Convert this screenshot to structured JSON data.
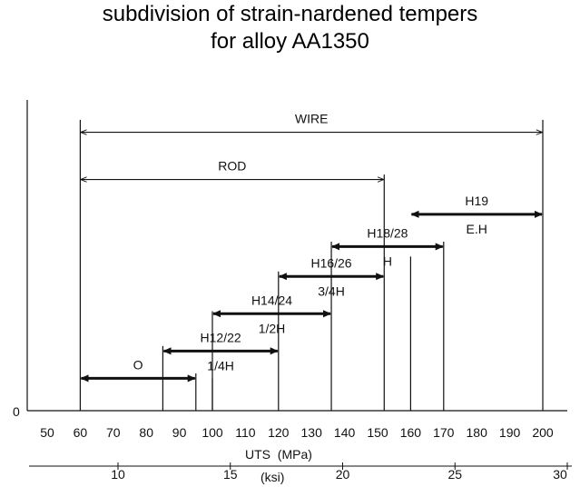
{
  "chart_data": {
    "type": "range-bar",
    "title_lines": [
      "subdivision of strain-nardened tempers",
      "for alloy AA1350"
    ],
    "xlabel_mpa": "UTS  (MPa)",
    "xlabel_ksi": "(ksi)",
    "y_origin_label": "0",
    "mpa_axis": {
      "range": [
        45,
        205
      ],
      "ticks": [
        50,
        60,
        70,
        80,
        90,
        100,
        110,
        120,
        130,
        140,
        150,
        160,
        170,
        180,
        190,
        200
      ]
    },
    "ksi_axis": {
      "range": [
        6.5,
        30
      ],
      "ticks": [
        10,
        15,
        20,
        25,
        30
      ]
    },
    "ranges": [
      {
        "id": "wire",
        "label": "WIRE",
        "sublabel": "",
        "min": 60,
        "max": 200,
        "style": "thin",
        "level": 11.2
      },
      {
        "id": "rod",
        "label": "ROD",
        "sublabel": "",
        "min": 60,
        "max": 152,
        "style": "thin",
        "level": 9.3
      },
      {
        "id": "h19",
        "label": "H19",
        "sublabel": "E.H",
        "min": 160,
        "max": 200,
        "style": "bold",
        "level": 7.9
      },
      {
        "id": "h18-28",
        "label": "H18/28",
        "sublabel": "H",
        "min": 136,
        "max": 170,
        "style": "bold",
        "level": 6.6
      },
      {
        "id": "h16-26",
        "label": "H16/26",
        "sublabel": "3/4H",
        "min": 120,
        "max": 152,
        "style": "bold",
        "level": 5.4
      },
      {
        "id": "h14-24",
        "label": "H14/24",
        "sublabel": "1/2H",
        "min": 100,
        "max": 136,
        "style": "bold",
        "level": 3.9
      },
      {
        "id": "h12-22",
        "label": "H12/22",
        "sublabel": "1/4H",
        "min": 85,
        "max": 120,
        "style": "bold",
        "level": 2.4
      },
      {
        "id": "o",
        "label": "O",
        "sublabel": "",
        "min": 60,
        "max": 95,
        "style": "bold",
        "level": 1.3
      }
    ],
    "level_range": [
      0,
      12.5
    ],
    "boundary_lines": [
      {
        "x": 60,
        "top_level": 11.7
      },
      {
        "x": 85,
        "top_level": 2.6
      },
      {
        "x": 95,
        "top_level": 1.5
      },
      {
        "x": 100,
        "top_level": 1.3
      },
      {
        "x": 100,
        "top_level": 4.0
      },
      {
        "x": 120,
        "top_level": 5.6
      },
      {
        "x": 136,
        "top_level": 6.8
      },
      {
        "x": 152,
        "top_level": 9.5
      },
      {
        "x": 160,
        "top_level": 6.2
      },
      {
        "x": 170,
        "top_level": 6.8
      },
      {
        "x": 200,
        "top_level": 11.7
      }
    ]
  }
}
